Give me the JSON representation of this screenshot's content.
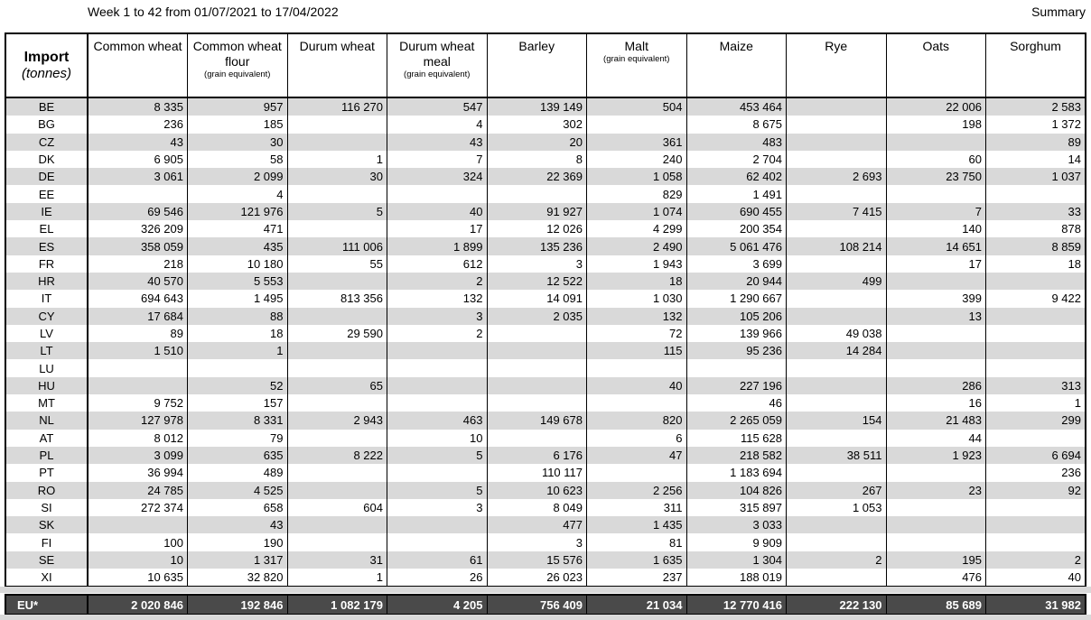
{
  "header": {
    "title": "Week 1 to 42 from 01/07/2021 to 17/04/2022",
    "summary_label": "Summary"
  },
  "table": {
    "corner": {
      "title": "Import",
      "subtitle": "(tonnes)"
    },
    "columns": [
      {
        "id": "common-wheat",
        "label": "Common wheat",
        "sub": ""
      },
      {
        "id": "common-wheat-flour",
        "label": "Common wheat flour",
        "sub": "(grain equivalent)"
      },
      {
        "id": "durum-wheat",
        "label": "Durum wheat",
        "sub": ""
      },
      {
        "id": "durum-wheat-meal",
        "label": "Durum wheat meal",
        "sub": "(grain equivalent)"
      },
      {
        "id": "barley",
        "label": "Barley",
        "sub": ""
      },
      {
        "id": "malt",
        "label": "Malt",
        "sub": "(grain equivalent)"
      },
      {
        "id": "maize",
        "label": "Maize",
        "sub": ""
      },
      {
        "id": "rye",
        "label": "Rye",
        "sub": ""
      },
      {
        "id": "oats",
        "label": "Oats",
        "sub": ""
      },
      {
        "id": "sorghum",
        "label": "Sorghum",
        "sub": ""
      }
    ],
    "rows": [
      {
        "code": "BE",
        "values": [
          "8 335",
          "957",
          "116 270",
          "547",
          "139 149",
          "504",
          "453 464",
          "",
          "22 006",
          "2 583"
        ]
      },
      {
        "code": "BG",
        "values": [
          "236",
          "185",
          "",
          "4",
          "302",
          "",
          "8 675",
          "",
          "198",
          "1 372"
        ]
      },
      {
        "code": "CZ",
        "values": [
          "43",
          "30",
          "",
          "43",
          "20",
          "361",
          "483",
          "",
          "",
          "89"
        ]
      },
      {
        "code": "DK",
        "values": [
          "6 905",
          "58",
          "1",
          "7",
          "8",
          "240",
          "2 704",
          "",
          "60",
          "14"
        ]
      },
      {
        "code": "DE",
        "values": [
          "3 061",
          "2 099",
          "30",
          "324",
          "22 369",
          "1 058",
          "62 402",
          "2 693",
          "23 750",
          "1 037"
        ]
      },
      {
        "code": "EE",
        "values": [
          "",
          "4",
          "",
          "",
          "",
          "829",
          "1 491",
          "",
          "",
          ""
        ]
      },
      {
        "code": "IE",
        "values": [
          "69 546",
          "121 976",
          "5",
          "40",
          "91 927",
          "1 074",
          "690 455",
          "7 415",
          "7",
          "33"
        ]
      },
      {
        "code": "EL",
        "values": [
          "326 209",
          "471",
          "",
          "17",
          "12 026",
          "4 299",
          "200 354",
          "",
          "140",
          "878"
        ]
      },
      {
        "code": "ES",
        "values": [
          "358 059",
          "435",
          "111 006",
          "1 899",
          "135 236",
          "2 490",
          "5 061 476",
          "108 214",
          "14 651",
          "8 859"
        ]
      },
      {
        "code": "FR",
        "values": [
          "218",
          "10 180",
          "55",
          "612",
          "3",
          "1 943",
          "3 699",
          "",
          "17",
          "18"
        ]
      },
      {
        "code": "HR",
        "values": [
          "40 570",
          "5 553",
          "",
          "2",
          "12 522",
          "18",
          "20 944",
          "499",
          "",
          ""
        ]
      },
      {
        "code": "IT",
        "values": [
          "694 643",
          "1 495",
          "813 356",
          "132",
          "14 091",
          "1 030",
          "1 290 667",
          "",
          "399",
          "9 422"
        ]
      },
      {
        "code": "CY",
        "values": [
          "17 684",
          "88",
          "",
          "3",
          "2 035",
          "132",
          "105 206",
          "",
          "13",
          ""
        ]
      },
      {
        "code": "LV",
        "values": [
          "89",
          "18",
          "29 590",
          "2",
          "",
          "72",
          "139 966",
          "49 038",
          "",
          ""
        ]
      },
      {
        "code": "LT",
        "values": [
          "1 510",
          "1",
          "",
          "",
          "",
          "115",
          "95 236",
          "14 284",
          "",
          ""
        ]
      },
      {
        "code": "LU",
        "values": [
          "",
          "",
          "",
          "",
          "",
          "",
          "",
          "",
          "",
          ""
        ]
      },
      {
        "code": "HU",
        "values": [
          "",
          "52",
          "65",
          "",
          "",
          "40",
          "227 196",
          "",
          "286",
          "313"
        ]
      },
      {
        "code": "MT",
        "values": [
          "9 752",
          "157",
          "",
          "",
          "",
          "",
          "46",
          "",
          "16",
          "1"
        ]
      },
      {
        "code": "NL",
        "values": [
          "127 978",
          "8 331",
          "2 943",
          "463",
          "149 678",
          "820",
          "2 265 059",
          "154",
          "21 483",
          "299"
        ]
      },
      {
        "code": "AT",
        "values": [
          "8 012",
          "79",
          "",
          "10",
          "",
          "6",
          "115 628",
          "",
          "44",
          ""
        ]
      },
      {
        "code": "PL",
        "values": [
          "3 099",
          "635",
          "8 222",
          "5",
          "6 176",
          "47",
          "218 582",
          "38 511",
          "1 923",
          "6 694"
        ]
      },
      {
        "code": "PT",
        "values": [
          "36 994",
          "489",
          "",
          "",
          "110 117",
          "",
          "1 183 694",
          "",
          "",
          "236"
        ]
      },
      {
        "code": "RO",
        "values": [
          "24 785",
          "4 525",
          "",
          "5",
          "10 623",
          "2 256",
          "104 826",
          "267",
          "23",
          "92"
        ]
      },
      {
        "code": "SI",
        "values": [
          "272 374",
          "658",
          "604",
          "3",
          "8 049",
          "311",
          "315 897",
          "1 053",
          "",
          ""
        ]
      },
      {
        "code": "SK",
        "values": [
          "",
          "43",
          "",
          "",
          "477",
          "1 435",
          "3 033",
          "",
          "",
          ""
        ]
      },
      {
        "code": "FI",
        "values": [
          "100",
          "190",
          "",
          "",
          "3",
          "81",
          "9 909",
          "",
          "",
          ""
        ]
      },
      {
        "code": "SE",
        "values": [
          "10",
          "1 317",
          "31",
          "61",
          "15 576",
          "1 635",
          "1 304",
          "2",
          "195",
          "2"
        ]
      },
      {
        "code": "XI",
        "values": [
          "10 635",
          "32 820",
          "1",
          "26",
          "26 023",
          "237",
          "188 019",
          "",
          "476",
          "40"
        ]
      }
    ]
  },
  "footer": {
    "label": "EU*",
    "values": [
      "2 020 846",
      "192 846",
      "1 082 179",
      "4 205",
      "756 409",
      "21 034",
      "12 770 416",
      "222 130",
      "85 689",
      "31 982"
    ]
  }
}
